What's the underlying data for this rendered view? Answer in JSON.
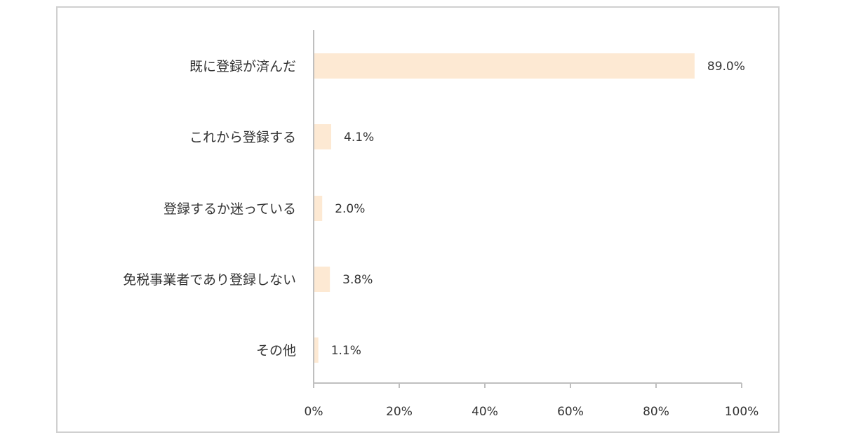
{
  "chart_data": {
    "type": "bar",
    "orientation": "horizontal",
    "categories": [
      "既に登録が済んだ",
      "これから登録する",
      "登録するか迷っている",
      "免税事業者であり登録しない",
      "その他"
    ],
    "values": [
      89.0,
      4.1,
      2.0,
      3.8,
      1.1
    ],
    "value_labels": [
      "89.0%",
      "4.1%",
      "2.0%",
      "3.8%",
      "1.1%"
    ],
    "xlim": [
      0,
      100
    ],
    "x_ticks": [
      0,
      20,
      40,
      60,
      80,
      100
    ],
    "x_tick_labels": [
      "0%",
      "20%",
      "40%",
      "60%",
      "80%",
      "100%"
    ],
    "title": "",
    "xlabel": "",
    "ylabel": "",
    "grid": false,
    "legend": "none",
    "colors": {
      "bar": "#fde9d3",
      "axis": "#bfbfbf",
      "text": "#333333",
      "frame": "#d0d0d0"
    }
  }
}
